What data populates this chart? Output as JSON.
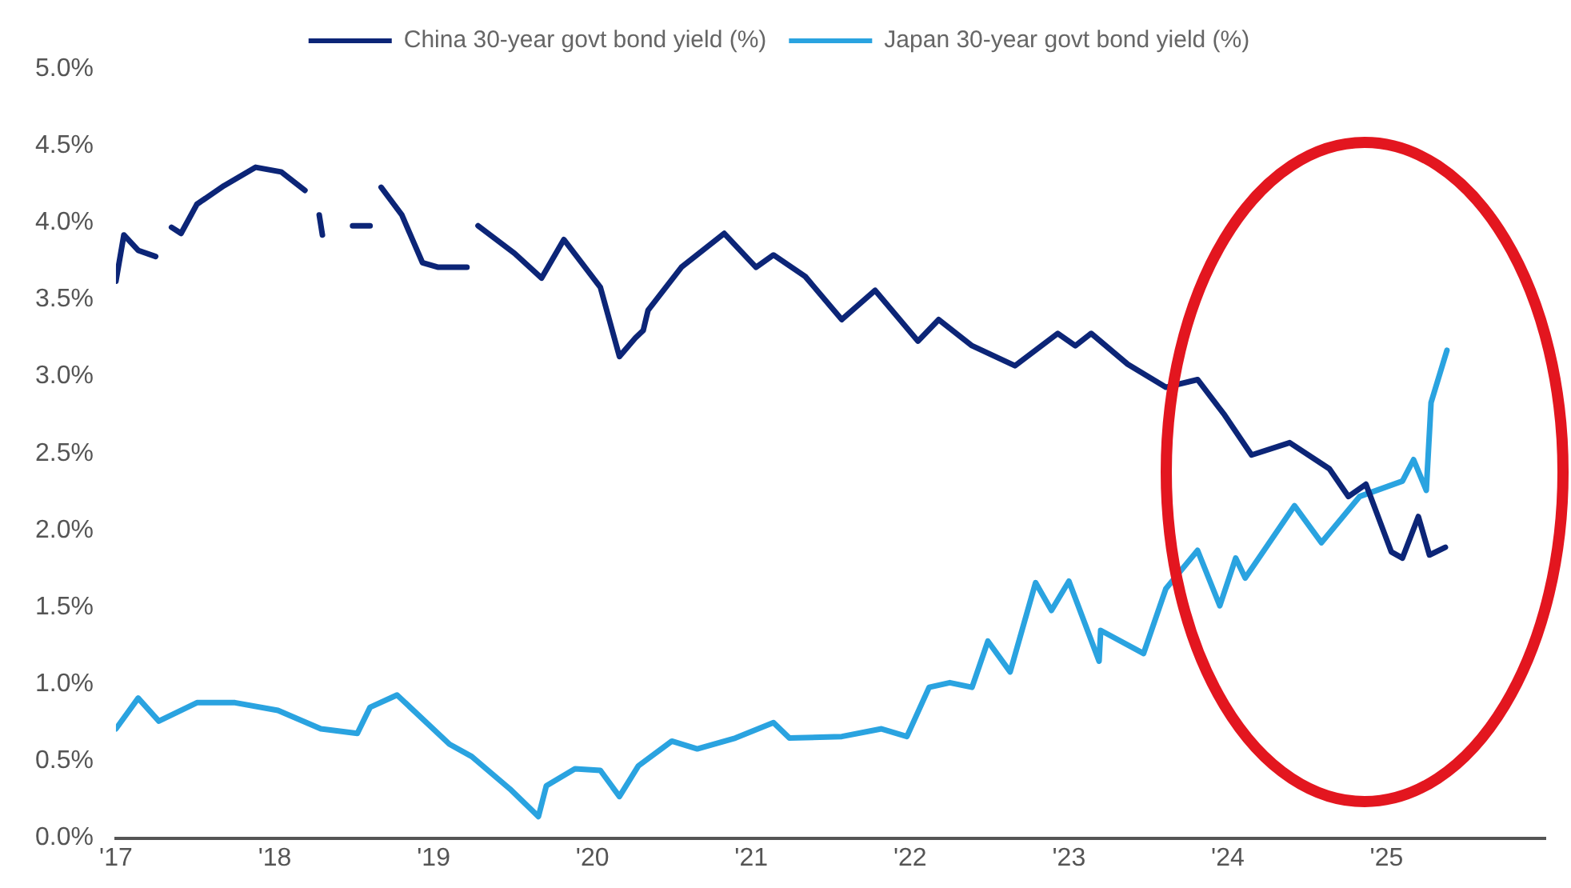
{
  "chart_data": {
    "type": "line",
    "legend": "top",
    "grid": false,
    "xlim": [
      2017,
      2026
    ],
    "xticks": [
      {
        "value": 2017,
        "label": "'17"
      },
      {
        "value": 2018,
        "label": "'18"
      },
      {
        "value": 2019,
        "label": "'19"
      },
      {
        "value": 2020,
        "label": "'20"
      },
      {
        "value": 2021,
        "label": "'21"
      },
      {
        "value": 2022,
        "label": "'22"
      },
      {
        "value": 2023,
        "label": "'23"
      },
      {
        "value": 2024,
        "label": "'24"
      },
      {
        "value": 2025,
        "label": "'25"
      }
    ],
    "ylim": [
      0,
      5
    ],
    "yticks": [
      {
        "value": 0,
        "label": "0.0%"
      },
      {
        "value": 0.5,
        "label": "0.5%"
      },
      {
        "value": 1,
        "label": "1.0%"
      },
      {
        "value": 1.5,
        "label": "1.5%"
      },
      {
        "value": 2,
        "label": "2.0%"
      },
      {
        "value": 2.5,
        "label": "2.5%"
      },
      {
        "value": 3,
        "label": "3.0%"
      },
      {
        "value": 3.5,
        "label": "3.5%"
      },
      {
        "value": 4,
        "label": "4.0%"
      },
      {
        "value": 4.5,
        "label": "4.5%"
      },
      {
        "value": 5,
        "label": "5.0%"
      }
    ],
    "series": [
      {
        "name": "China 30-year govt bond yield (%)",
        "color": "#0c2577",
        "x": [
          2017.0,
          2017.05,
          2017.14,
          2017.25,
          2017.3,
          2017.35,
          2017.41,
          2017.51,
          2017.68,
          2017.88,
          2018.04,
          2018.19,
          2018.24,
          2018.28,
          2018.3,
          2018.4,
          2018.49,
          2018.6,
          2018.64,
          2018.67,
          2018.8,
          2018.93,
          2019.03,
          2019.21,
          2019.25,
          2019.28,
          2019.51,
          2019.68,
          2019.82,
          2020.05,
          2020.17,
          2020.27,
          2020.32,
          2020.35,
          2020.56,
          2020.83,
          2021.03,
          2021.14,
          2021.34,
          2021.57,
          2021.78,
          2022.05,
          2022.18,
          2022.39,
          2022.66,
          2022.93,
          2023.04,
          2023.14,
          2023.37,
          2023.61,
          2023.81,
          2023.98,
          2024.15,
          2024.39,
          2024.64,
          2024.76,
          2024.87,
          2025.03,
          2025.1,
          2025.2,
          2025.27,
          2025.37
        ],
        "values": [
          3.62,
          3.92,
          3.82,
          3.78,
          null,
          3.97,
          3.93,
          4.12,
          4.24,
          4.36,
          4.33,
          4.21,
          null,
          4.05,
          3.92,
          null,
          3.98,
          3.98,
          null,
          4.23,
          4.05,
          3.74,
          3.71,
          3.71,
          null,
          3.98,
          3.8,
          3.64,
          3.89,
          3.58,
          3.13,
          3.25,
          3.3,
          3.43,
          3.71,
          3.93,
          3.71,
          3.79,
          3.65,
          3.37,
          3.56,
          3.23,
          3.37,
          3.2,
          3.07,
          3.28,
          3.2,
          3.28,
          3.08,
          2.93,
          2.98,
          2.75,
          2.49,
          2.57,
          2.4,
          2.22,
          2.3,
          1.86,
          1.82,
          2.09,
          1.84,
          1.89
        ]
      },
      {
        "name": "Japan 30-year govt bond yield (%)",
        "color": "#2aa3e0",
        "x": [
          2017.0,
          2017.14,
          2017.27,
          2017.51,
          2017.75,
          2018.02,
          2018.29,
          2018.52,
          2018.6,
          2018.77,
          2019.1,
          2019.24,
          2019.48,
          2019.66,
          2019.71,
          2019.89,
          2020.05,
          2020.17,
          2020.29,
          2020.5,
          2020.66,
          2020.9,
          2021.14,
          2021.24,
          2021.57,
          2021.82,
          2021.98,
          2022.12,
          2022.25,
          2022.39,
          2022.49,
          2022.63,
          2022.79,
          2022.89,
          2023.0,
          2023.19,
          2023.2,
          2023.47,
          2023.61,
          2023.81,
          2023.95,
          2024.05,
          2024.11,
          2024.42,
          2024.59,
          2024.83,
          2025.1,
          2025.17,
          2025.25,
          2025.28,
          2025.38
        ],
        "values": [
          0.71,
          0.91,
          0.76,
          0.88,
          0.88,
          0.83,
          0.71,
          0.68,
          0.85,
          0.93,
          0.61,
          0.53,
          0.32,
          0.14,
          0.34,
          0.45,
          0.44,
          0.27,
          0.47,
          0.63,
          0.58,
          0.65,
          0.75,
          0.65,
          0.66,
          0.71,
          0.66,
          0.98,
          1.01,
          0.98,
          1.28,
          1.08,
          1.66,
          1.48,
          1.67,
          1.15,
          1.35,
          1.2,
          1.62,
          1.87,
          1.51,
          1.82,
          1.69,
          2.16,
          1.92,
          2.22,
          2.32,
          2.46,
          2.26,
          2.83,
          3.17
        ]
      }
    ]
  }
}
